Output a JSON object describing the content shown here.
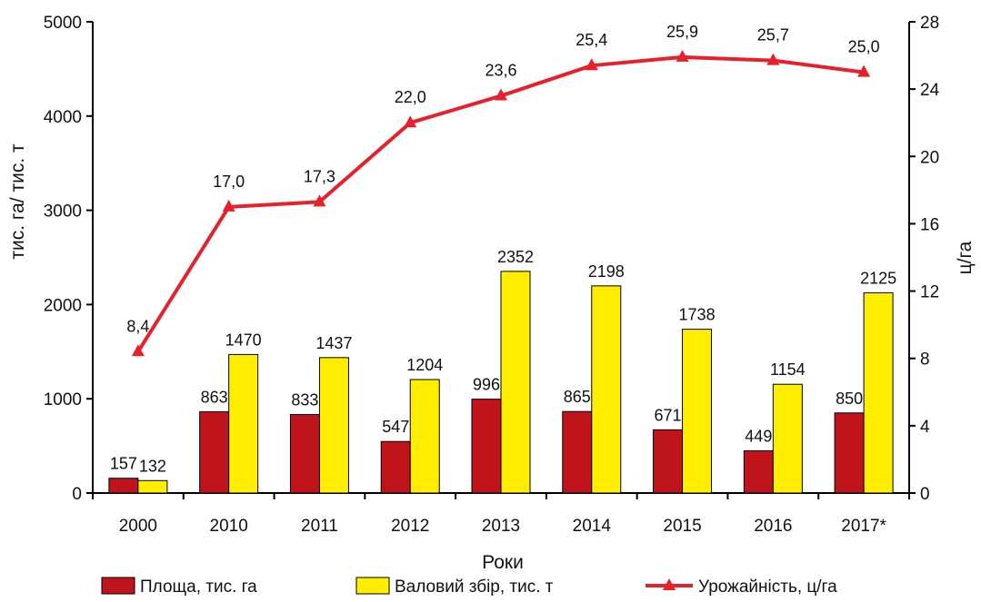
{
  "chart_data": {
    "type": "bar",
    "categories": [
      "2000",
      "2010",
      "2011",
      "2012",
      "2013",
      "2014",
      "2015",
      "2016",
      "2017*"
    ],
    "series": [
      {
        "name": "Площа, тис. га",
        "type": "bar",
        "axis": "left",
        "color": "#c0141c",
        "values": [
          157,
          863,
          833,
          547,
          996,
          865,
          671,
          449,
          850
        ],
        "labels": [
          "157",
          "863",
          "833",
          "547",
          "996",
          "865",
          "671",
          "449",
          "850"
        ]
      },
      {
        "name": "Валовий збір, тис. т",
        "type": "bar",
        "axis": "left",
        "color": "#ffee00",
        "values": [
          132,
          1470,
          1437,
          1204,
          2352,
          2198,
          1738,
          1154,
          2125
        ],
        "labels": [
          "132",
          "1470",
          "1437",
          "1204",
          "2352",
          "2198",
          "1738",
          "1154",
          "2125"
        ]
      },
      {
        "name": "Урожайність, ц/га",
        "type": "line",
        "axis": "right",
        "color": "#e8202a",
        "values": [
          8.4,
          17.0,
          17.3,
          22.0,
          23.6,
          25.4,
          25.9,
          25.7,
          25.0
        ],
        "labels": [
          "8,4",
          "17,0",
          "17,3",
          "22,0",
          "23,6",
          "25,4",
          "25,9",
          "25,7",
          "25,0"
        ]
      }
    ],
    "xlabel": "Роки",
    "ylabel": "тис. га/ тис. т",
    "y2label": "ц/га",
    "ylim": [
      0,
      5000
    ],
    "y2lim": [
      0,
      28
    ],
    "yticks": [
      "0",
      "1000",
      "2000",
      "3000",
      "4000",
      "5000"
    ],
    "y2ticks": [
      "0",
      "4",
      "8",
      "12",
      "16",
      "20",
      "24",
      "28"
    ],
    "grid": false,
    "legend_position": "bottom"
  }
}
